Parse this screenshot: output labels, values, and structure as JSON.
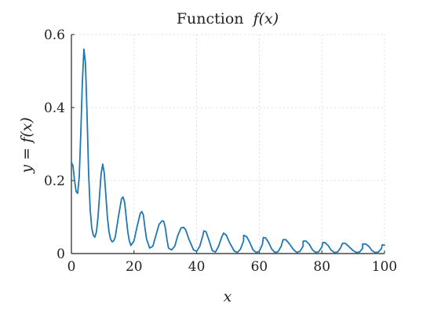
{
  "chart_data": {
    "type": "line",
    "title": "Function f(x)",
    "title_prefix": "Function",
    "title_math": "f(x)",
    "xlabel": "x",
    "ylabel": "y = f(x)",
    "xlim": [
      0,
      100
    ],
    "ylim": [
      0,
      0.6
    ],
    "xticks": [
      0,
      20,
      40,
      60,
      80,
      100
    ],
    "yticks": [
      0,
      0.2,
      0.4,
      0.6
    ],
    "ytick_labels": [
      "0",
      "0.2",
      "0.4",
      "0.6"
    ],
    "grid": true,
    "line_color": "#1f77b4",
    "series": [
      {
        "x": [
          0,
          0.5,
          1,
          1.5,
          2,
          2.5,
          3,
          3.5,
          4,
          4.5,
          5,
          5.5,
          6,
          6.5,
          7,
          7.5,
          8,
          8.5,
          9,
          9.5,
          10,
          10.5,
          11,
          11.5,
          12,
          12.5,
          13,
          13.5,
          14,
          15,
          16,
          16.5,
          17,
          17.5,
          18,
          18.5,
          19,
          20,
          21,
          22,
          22.5,
          23,
          23.5,
          24,
          25,
          26,
          27,
          28,
          29,
          29.5,
          30,
          30.5,
          31,
          32,
          33,
          34,
          35,
          35.8,
          36.5,
          37.5,
          39,
          40,
          41,
          42,
          42.3,
          43,
          44,
          45,
          46,
          47,
          48,
          48.6,
          49.5,
          50.5,
          52,
          53,
          54,
          55,
          55,
          56,
          57,
          58,
          59,
          60,
          61,
          61.3,
          62,
          63,
          64,
          65,
          66,
          67,
          67.6,
          68.5,
          69.5,
          71,
          72,
          73,
          74,
          74,
          75,
          76,
          77,
          78,
          79,
          80,
          80.3,
          81,
          82,
          83,
          84,
          85,
          86,
          86.6,
          87.5,
          88.5,
          90,
          91,
          92,
          93,
          93,
          94,
          95,
          96,
          97,
          98,
          99,
          99.3,
          100
        ],
        "y": [
          0.25,
          0.24,
          0.2,
          0.17,
          0.165,
          0.21,
          0.33,
          0.47,
          0.56,
          0.52,
          0.38,
          0.22,
          0.12,
          0.07,
          0.05,
          0.045,
          0.06,
          0.1,
          0.16,
          0.22,
          0.245,
          0.22,
          0.16,
          0.1,
          0.06,
          0.04,
          0.032,
          0.035,
          0.045,
          0.1,
          0.15,
          0.155,
          0.14,
          0.1,
          0.06,
          0.035,
          0.022,
          0.035,
          0.075,
          0.11,
          0.115,
          0.105,
          0.07,
          0.04,
          0.015,
          0.02,
          0.05,
          0.08,
          0.09,
          0.088,
          0.07,
          0.04,
          0.015,
          0.01,
          0.02,
          0.05,
          0.07,
          0.072,
          0.065,
          0.04,
          0.01,
          0.006,
          0.02,
          0.05,
          0.062,
          0.06,
          0.035,
          0.008,
          0.004,
          0.02,
          0.045,
          0.056,
          0.05,
          0.03,
          0.007,
          0.003,
          0.012,
          0.035,
          0.05,
          0.046,
          0.03,
          0.01,
          0.003,
          0.006,
          0.025,
          0.044,
          0.043,
          0.03,
          0.012,
          0.003,
          0.005,
          0.02,
          0.038,
          0.038,
          0.028,
          0.01,
          0.003,
          0.006,
          0.02,
          0.034,
          0.034,
          0.025,
          0.01,
          0.003,
          0.005,
          0.018,
          0.03,
          0.03,
          0.022,
          0.009,
          0.003,
          0.004,
          0.016,
          0.028,
          0.028,
          0.02,
          0.008,
          0.003,
          0.004,
          0.014,
          0.026,
          0.026,
          0.02,
          0.008,
          0.003,
          0.004,
          0.013,
          0.024,
          0.023
        ]
      }
    ]
  }
}
